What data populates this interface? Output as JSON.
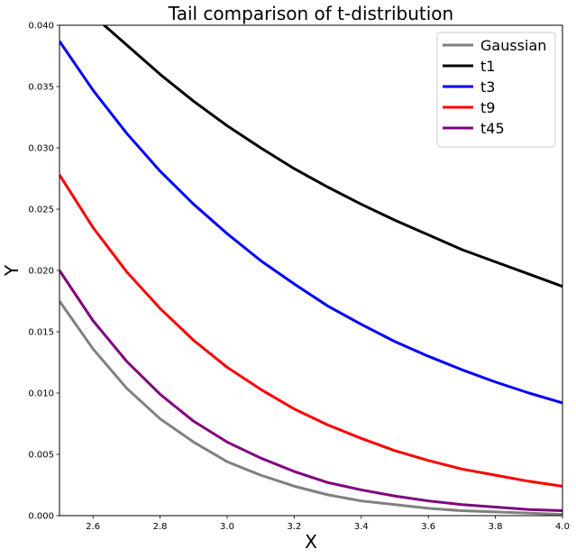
{
  "chart_data": {
    "type": "line",
    "title": "Tail comparison of t-distribution",
    "xlabel": "X",
    "ylabel": "Y",
    "xlim": [
      2.5,
      4.0
    ],
    "ylim": [
      0.0,
      0.04
    ],
    "xticks": [
      "2.6",
      "2.8",
      "3.0",
      "3.2",
      "3.4",
      "3.6",
      "3.8",
      "4.0"
    ],
    "yticks": [
      "0.000",
      "0.005",
      "0.010",
      "0.015",
      "0.020",
      "0.025",
      "0.030",
      "0.035",
      "0.040"
    ],
    "grid": false,
    "legend_position": "top-right",
    "x": [
      2.5,
      2.6,
      2.7,
      2.8,
      2.9,
      3.0,
      3.1,
      3.2,
      3.3,
      3.4,
      3.5,
      3.6,
      3.7,
      3.8,
      3.9,
      4.0
    ],
    "series": [
      {
        "name": "Gaussian",
        "color": "#808080",
        "values": [
          0.0175,
          0.0136,
          0.0104,
          0.0079,
          0.006,
          0.0044,
          0.0033,
          0.0024,
          0.0017,
          0.0012,
          0.0009,
          0.0006,
          0.0004,
          0.0003,
          0.0002,
          0.0001
        ]
      },
      {
        "name": "t1",
        "color": "#000000",
        "values": [
          0.0439,
          0.0408,
          0.0384,
          0.036,
          0.0338,
          0.0318,
          0.03,
          0.0283,
          0.0268,
          0.0254,
          0.0241,
          0.0229,
          0.0217,
          0.0207,
          0.0197,
          0.0187
        ]
      },
      {
        "name": "t3",
        "color": "#0000ff",
        "values": [
          0.0387,
          0.0347,
          0.0312,
          0.0281,
          0.0254,
          0.023,
          0.0208,
          0.0189,
          0.0171,
          0.0156,
          0.0142,
          0.013,
          0.0119,
          0.0109,
          0.01,
          0.0092
        ]
      },
      {
        "name": "t9",
        "color": "#ff0000",
        "values": [
          0.0278,
          0.0235,
          0.0199,
          0.0169,
          0.0143,
          0.0121,
          0.0103,
          0.0087,
          0.0074,
          0.0063,
          0.0053,
          0.0045,
          0.0038,
          0.0033,
          0.0028,
          0.0024
        ]
      },
      {
        "name": "t45",
        "color": "#800080",
        "values": [
          0.02,
          0.0159,
          0.0126,
          0.0099,
          0.0077,
          0.006,
          0.0047,
          0.0036,
          0.0027,
          0.0021,
          0.0016,
          0.0012,
          0.0009,
          0.0007,
          0.0005,
          0.0004
        ]
      }
    ]
  }
}
